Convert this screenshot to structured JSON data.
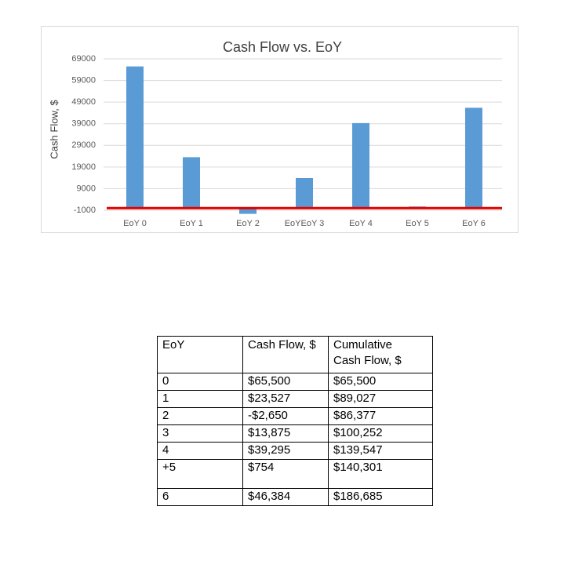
{
  "chart_data": {
    "type": "bar",
    "title": "Cash Flow vs. EoY",
    "y_label": "Cash Flow, $",
    "categories": [
      "EoY 0",
      "EoY 1",
      "EoY 2",
      "EoYEoY 3",
      "EoY 4",
      "EoY 5",
      "EoY 6"
    ],
    "values": [
      65500,
      23527,
      -2650,
      13875,
      39295,
      754,
      46384
    ],
    "color": "#5b9bd5",
    "ylim": [
      -1000,
      69000
    ],
    "yticks": [
      -1000,
      9000,
      19000,
      29000,
      39000,
      49000,
      59000,
      69000
    ],
    "grid": true
  },
  "table": {
    "header": [
      "EoY",
      "Cash Flow, $",
      "Cumulative Cash Flow, $"
    ],
    "rows": [
      [
        "0",
        "$65,500",
        "$65,500"
      ],
      [
        "1",
        "$23,527",
        "$89,027"
      ],
      [
        "2",
        "-$2,650",
        "$86,377"
      ],
      [
        "3",
        "$13,875",
        "$100,252"
      ],
      [
        "4",
        "$39,295",
        "$139,547"
      ],
      [
        "+5",
        "$754",
        "$140,301"
      ],
      [
        "6",
        "$46,384",
        "$186,685"
      ]
    ]
  }
}
